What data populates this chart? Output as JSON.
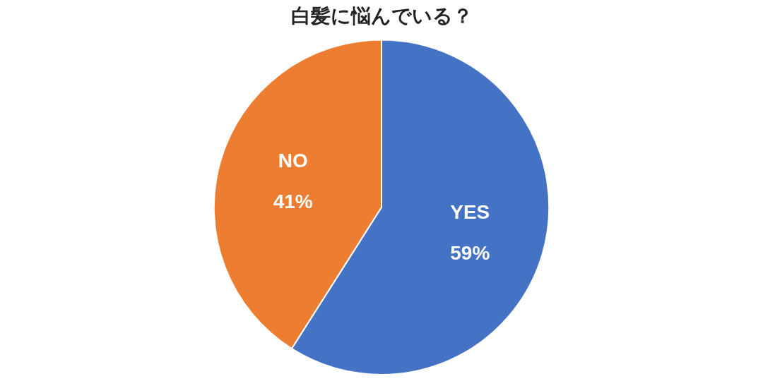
{
  "chart_data": {
    "type": "pie",
    "title": "白髪に悩んでいる？",
    "categories": [
      "YES",
      "NO"
    ],
    "values": [
      59,
      41
    ],
    "colors": [
      "#4472c4",
      "#ed7d31"
    ],
    "value_labels": [
      "59%",
      "41%"
    ],
    "legend": false
  }
}
